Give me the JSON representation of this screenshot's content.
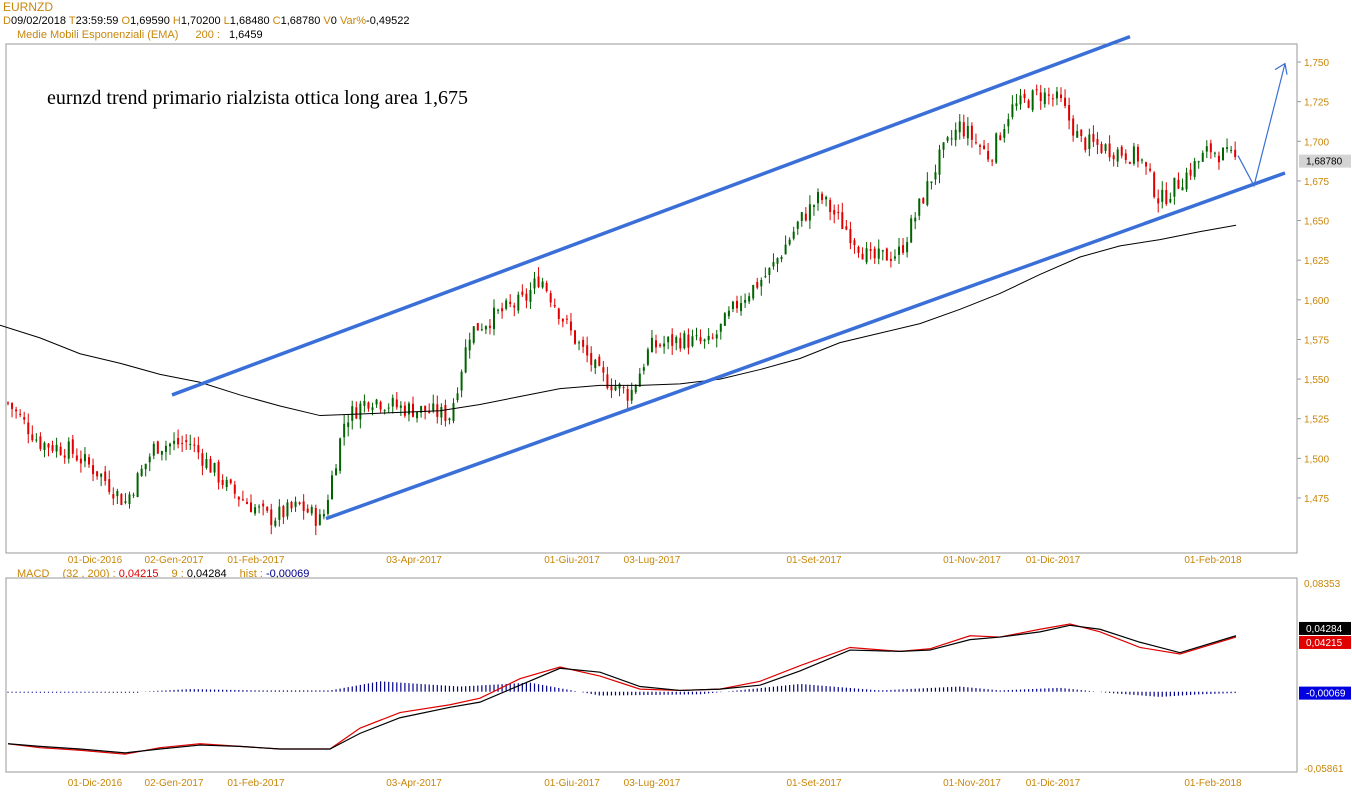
{
  "symbol": "EURNZD",
  "ohlc_header": {
    "d_label": "D",
    "date": "09/02/2018",
    "t_label": "T",
    "time": "23:59:59",
    "o_label": "O",
    "open": "1,69590",
    "h_label": "H",
    "high": "1,70200",
    "l_label": "L",
    "low": "1,68480",
    "c_label": "C",
    "close": "1,68780",
    "v_label": "V",
    "volume": "0",
    "var_label": "Var%",
    "var": "-0,49522"
  },
  "ema_header": {
    "label": "Medie Mobili Esponenziali (EMA)",
    "period": "200 :",
    "value": "1,6459"
  },
  "annotation": "eurnzd trend primario rialzista ottica long area 1,675",
  "macd_header": {
    "label": "MACD",
    "params": "(32 , 200) :",
    "macd": "0,04215",
    "sig_period": "9 :",
    "signal": "0,04284",
    "hist_label": "hist :",
    "hist": "-0,00069"
  },
  "colors": {
    "up": "#006400",
    "down": "#e00000",
    "channel": "#3a6fd8",
    "ema": "#000000",
    "axis_text": "#c8860a",
    "hist": "#00008b",
    "macd": "#e00000",
    "signal": "#000000"
  },
  "chart_data": [
    {
      "type": "candlestick",
      "title": "EURNZD",
      "x_ticks": [
        "01-Dic-2016",
        "02-Gen-2017",
        "01-Feb-2017",
        "03-Apr-2017",
        "01-Giu-2017",
        "03-Lug-2017",
        "01-Set-2017",
        "01-Nov-2017",
        "01-Dic-2017",
        "01-Feb-2018"
      ],
      "y_ticks": [
        "1,750",
        "1,725",
        "1,700",
        "1,675",
        "1,650",
        "1,625",
        "1,600",
        "1,575",
        "1,550",
        "1,525",
        "1,500",
        "1,475"
      ],
      "ylim": [
        1.44,
        1.76
      ],
      "last_price": "1,68780",
      "ema200": [
        [
          0,
          1.584
        ],
        [
          40,
          1.576
        ],
        [
          80,
          1.566
        ],
        [
          120,
          1.56
        ],
        [
          160,
          1.553
        ],
        [
          200,
          1.548
        ],
        [
          240,
          1.54
        ],
        [
          280,
          1.533
        ],
        [
          320,
          1.527
        ],
        [
          360,
          1.528
        ],
        [
          400,
          1.529
        ],
        [
          440,
          1.53
        ],
        [
          480,
          1.534
        ],
        [
          520,
          1.539
        ],
        [
          560,
          1.544
        ],
        [
          600,
          1.546
        ],
        [
          640,
          1.546
        ],
        [
          680,
          1.547
        ],
        [
          720,
          1.55
        ],
        [
          760,
          1.556
        ],
        [
          800,
          1.563
        ],
        [
          840,
          1.573
        ],
        [
          880,
          1.579
        ],
        [
          920,
          1.585
        ],
        [
          960,
          1.594
        ],
        [
          1000,
          1.604
        ],
        [
          1040,
          1.616
        ],
        [
          1080,
          1.627
        ],
        [
          1120,
          1.634
        ],
        [
          1160,
          1.638
        ],
        [
          1200,
          1.643
        ],
        [
          1236,
          1.647
        ]
      ],
      "trend_channel": {
        "upper": [
          [
            172,
            1.54
          ],
          [
            1130,
            1.766
          ]
        ],
        "lower": [
          [
            326,
            1.462
          ],
          [
            1285,
            1.68
          ]
        ]
      },
      "projection_arrow": [
        [
          1238,
          1.691
        ],
        [
          1254,
          1.672
        ],
        [
          1285,
          1.749
        ]
      ]
    },
    {
      "type": "line",
      "title": "MACD",
      "y_ticks": [
        "0,08353",
        "-0,05861"
      ],
      "ylim": [
        -0.05861,
        0.08353
      ],
      "last_values": {
        "signal": "0,04284",
        "macd": "0,04215",
        "hist": "-0,00069"
      },
      "series": [
        {
          "name": "MACD",
          "values": [
            [
              8,
              -0.04
            ],
            [
              40,
              -0.043
            ],
            [
              80,
              -0.045
            ],
            [
              125,
              -0.048
            ],
            [
              160,
              -0.043
            ],
            [
              200,
              -0.04
            ],
            [
              240,
              -0.042
            ],
            [
              280,
              -0.044
            ],
            [
              330,
              -0.044
            ],
            [
              360,
              -0.028
            ],
            [
              400,
              -0.016
            ],
            [
              450,
              -0.01
            ],
            [
              480,
              -0.005
            ],
            [
              520,
              0.01
            ],
            [
              560,
              0.019
            ],
            [
              600,
              0.012
            ],
            [
              640,
              0.002
            ],
            [
              680,
              0.001
            ],
            [
              720,
              0.002
            ],
            [
              760,
              0.008
            ],
            [
              800,
              0.02
            ],
            [
              850,
              0.034
            ],
            [
              900,
              0.031
            ],
            [
              930,
              0.033
            ],
            [
              970,
              0.043
            ],
            [
              1000,
              0.042
            ],
            [
              1040,
              0.048
            ],
            [
              1070,
              0.052
            ],
            [
              1100,
              0.046
            ],
            [
              1140,
              0.034
            ],
            [
              1180,
              0.029
            ],
            [
              1236,
              0.042
            ]
          ]
        },
        {
          "name": "Signal",
          "values": [
            [
              8,
              -0.04
            ],
            [
              40,
              -0.042
            ],
            [
              80,
              -0.044
            ],
            [
              125,
              -0.047
            ],
            [
              160,
              -0.044
            ],
            [
              200,
              -0.041
            ],
            [
              240,
              -0.042
            ],
            [
              280,
              -0.044
            ],
            [
              330,
              -0.044
            ],
            [
              360,
              -0.032
            ],
            [
              400,
              -0.02
            ],
            [
              450,
              -0.012
            ],
            [
              480,
              -0.008
            ],
            [
              520,
              0.005
            ],
            [
              560,
              0.018
            ],
            [
              600,
              0.015
            ],
            [
              640,
              0.004
            ],
            [
              680,
              0.001
            ],
            [
              720,
              0.002
            ],
            [
              760,
              0.005
            ],
            [
              800,
              0.016
            ],
            [
              850,
              0.032
            ],
            [
              900,
              0.031
            ],
            [
              930,
              0.032
            ],
            [
              970,
              0.04
            ],
            [
              1000,
              0.042
            ],
            [
              1040,
              0.046
            ],
            [
              1070,
              0.051
            ],
            [
              1100,
              0.048
            ],
            [
              1140,
              0.038
            ],
            [
              1180,
              0.03
            ],
            [
              1236,
              0.043
            ]
          ]
        }
      ],
      "histogram_envelope": [
        [
          8,
          0.0
        ],
        [
          140,
          0.0
        ],
        [
          190,
          0.002
        ],
        [
          260,
          0.001
        ],
        [
          330,
          0.001
        ],
        [
          380,
          0.008
        ],
        [
          460,
          0.004
        ],
        [
          530,
          0.007
        ],
        [
          600,
          -0.003
        ],
        [
          700,
          -0.002
        ],
        [
          800,
          0.006
        ],
        [
          880,
          0.001
        ],
        [
          960,
          0.004
        ],
        [
          1000,
          0.001
        ],
        [
          1060,
          0.003
        ],
        [
          1110,
          -0.001
        ],
        [
          1160,
          -0.004
        ],
        [
          1200,
          -0.002
        ],
        [
          1236,
          -0.001
        ]
      ]
    }
  ]
}
